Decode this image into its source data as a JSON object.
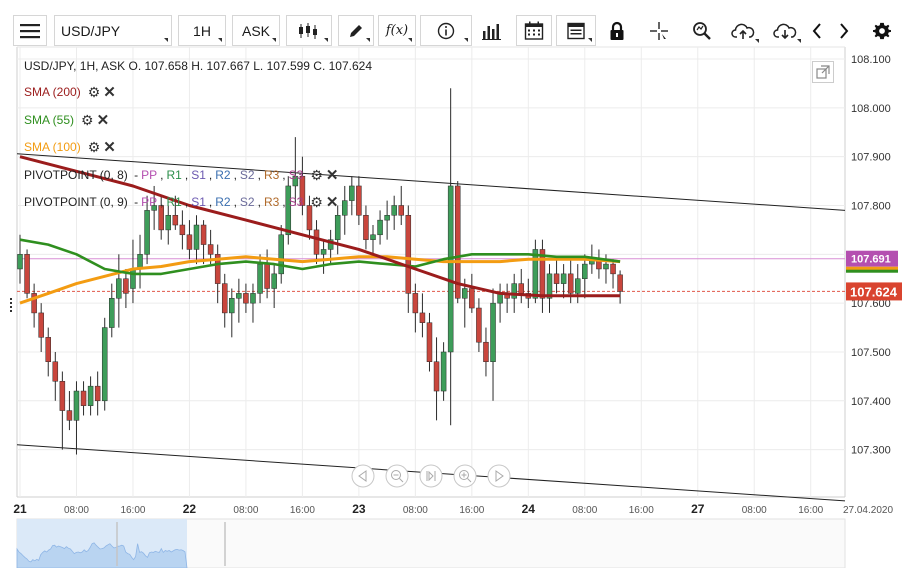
{
  "toolbar": {
    "symbol": "USD/JPY",
    "timeframe": "1H",
    "price_type": "ASK",
    "func_label": "f(x)"
  },
  "legend": {
    "ohlc": "USD/JPY, 1H, ASK    O. 107.658 H. 107.667 L. 107.599 C. 107.624",
    "sma200": "SMA (200)",
    "sma55": "SMA (55)",
    "sma100": "SMA (100)",
    "pivot1": {
      "name": "PIVOTPOINT (0, 8)",
      "labels": [
        "PP",
        "R1",
        "S1",
        "R2",
        "S2",
        "R3",
        "S3"
      ]
    },
    "pivot2": {
      "name": "PIVOTPOINT (0, 9)",
      "labels": [
        "PP",
        "R1",
        "S1",
        "R2",
        "S2",
        "R3",
        "S3"
      ]
    }
  },
  "colors": {
    "up": "#3e9d5a",
    "down": "#c9463d",
    "sma200": "#9b1c1c",
    "sma55": "#2f8f1f",
    "sma100": "#f39c12",
    "last_price_bg": "#d9442f",
    "marker_bg": "#b44fb0"
  },
  "chart_data": {
    "type": "candlestick",
    "symbol": "USD/JPY",
    "interval": "1H",
    "y_ticks": [
      108.1,
      108.0,
      107.9,
      107.8,
      107.7,
      107.6,
      107.5,
      107.4,
      107.3
    ],
    "y_tick_labels": [
      "108.100",
      "108.000",
      "107.900",
      "107.800",
      "107.700",
      "107.600",
      "107.500",
      "107.400",
      "107.300"
    ],
    "ylim": [
      107.2,
      108.12
    ],
    "x_ticks": [
      {
        "label": "21",
        "bold": true,
        "index": 0
      },
      {
        "label": "08:00",
        "bold": false,
        "index": 8
      },
      {
        "label": "16:00",
        "bold": false,
        "index": 16
      },
      {
        "label": "22",
        "bold": true,
        "index": 24
      },
      {
        "label": "08:00",
        "bold": false,
        "index": 32
      },
      {
        "label": "16:00",
        "bold": false,
        "index": 40
      },
      {
        "label": "23",
        "bold": true,
        "index": 48
      },
      {
        "label": "08:00",
        "bold": false,
        "index": 56
      },
      {
        "label": "16:00",
        "bold": false,
        "index": 64
      },
      {
        "label": "24",
        "bold": true,
        "index": 72
      },
      {
        "label": "08:00",
        "bold": false,
        "index": 80
      },
      {
        "label": "16:00",
        "bold": false,
        "index": 88
      },
      {
        "label": "27",
        "bold": true,
        "index": 96
      },
      {
        "label": "08:00",
        "bold": false,
        "index": 104
      },
      {
        "label": "16:00",
        "bold": false,
        "index": 112
      },
      {
        "label": "27.04.2020",
        "bold": false,
        "index": 120
      }
    ],
    "candles": [
      [
        107.67,
        107.74,
        107.64,
        107.7
      ],
      [
        107.7,
        107.71,
        107.61,
        107.62
      ],
      [
        107.62,
        107.64,
        107.55,
        107.58
      ],
      [
        107.58,
        107.6,
        107.5,
        107.53
      ],
      [
        107.53,
        107.55,
        107.45,
        107.48
      ],
      [
        107.48,
        107.5,
        107.4,
        107.44
      ],
      [
        107.44,
        107.46,
        107.3,
        107.38
      ],
      [
        107.38,
        107.42,
        107.34,
        107.36
      ],
      [
        107.36,
        107.44,
        107.29,
        107.42
      ],
      [
        107.42,
        107.44,
        107.37,
        107.39
      ],
      [
        107.39,
        107.45,
        107.37,
        107.43
      ],
      [
        107.43,
        107.46,
        107.37,
        107.4
      ],
      [
        107.4,
        107.57,
        107.38,
        107.55
      ],
      [
        107.55,
        107.64,
        107.53,
        107.61
      ],
      [
        107.61,
        107.7,
        107.55,
        107.65
      ],
      [
        107.65,
        107.67,
        107.59,
        107.62
      ],
      [
        107.63,
        107.73,
        107.6,
        107.67
      ],
      [
        107.67,
        107.74,
        107.63,
        107.7
      ],
      [
        107.7,
        107.82,
        107.68,
        107.79
      ],
      [
        107.79,
        107.84,
        107.75,
        107.8
      ],
      [
        107.8,
        107.82,
        107.73,
        107.75
      ],
      [
        107.75,
        107.8,
        107.72,
        107.78
      ],
      [
        107.78,
        107.82,
        107.75,
        107.76
      ],
      [
        107.76,
        107.79,
        107.71,
        107.74
      ],
      [
        107.74,
        107.77,
        107.69,
        107.71
      ],
      [
        107.71,
        107.78,
        107.68,
        107.76
      ],
      [
        107.76,
        107.77,
        107.68,
        107.72
      ],
      [
        107.72,
        107.75,
        107.68,
        107.7
      ],
      [
        107.7,
        107.72,
        107.6,
        107.64
      ],
      [
        107.64,
        107.66,
        107.55,
        107.58
      ],
      [
        107.58,
        107.63,
        107.53,
        107.61
      ],
      [
        107.61,
        107.65,
        107.56,
        107.62
      ],
      [
        107.62,
        107.64,
        107.58,
        107.6
      ],
      [
        107.6,
        107.64,
        107.56,
        107.62
      ],
      [
        107.62,
        107.7,
        107.6,
        107.68
      ],
      [
        107.68,
        107.71,
        107.61,
        107.63
      ],
      [
        107.63,
        107.68,
        107.59,
        107.66
      ],
      [
        107.66,
        107.76,
        107.64,
        107.74
      ],
      [
        107.74,
        107.86,
        107.72,
        107.84
      ],
      [
        107.84,
        107.94,
        107.8,
        107.86
      ],
      [
        107.86,
        107.9,
        107.78,
        107.8
      ],
      [
        107.8,
        107.82,
        107.73,
        107.75
      ],
      [
        107.75,
        107.77,
        107.68,
        107.7
      ],
      [
        107.7,
        107.73,
        107.66,
        107.71
      ],
      [
        107.71,
        107.75,
        107.68,
        107.73
      ],
      [
        107.73,
        107.8,
        107.7,
        107.78
      ],
      [
        107.78,
        107.84,
        107.74,
        107.81
      ],
      [
        107.81,
        107.86,
        107.78,
        107.84
      ],
      [
        107.84,
        107.86,
        107.76,
        107.78
      ],
      [
        107.78,
        107.8,
        107.71,
        107.73
      ],
      [
        107.73,
        107.76,
        107.7,
        107.74
      ],
      [
        107.74,
        107.79,
        107.72,
        107.77
      ],
      [
        107.77,
        107.81,
        107.73,
        107.78
      ],
      [
        107.78,
        107.82,
        107.75,
        107.8
      ],
      [
        107.8,
        107.84,
        107.76,
        107.78
      ],
      [
        107.78,
        107.8,
        107.58,
        107.62
      ],
      [
        107.62,
        107.64,
        107.54,
        107.58
      ],
      [
        107.58,
        107.62,
        107.53,
        107.56
      ],
      [
        107.56,
        107.58,
        107.46,
        107.48
      ],
      [
        107.48,
        107.53,
        107.36,
        107.42
      ],
      [
        107.42,
        107.52,
        107.4,
        107.5
      ],
      [
        107.5,
        108.04,
        107.35,
        107.84
      ],
      [
        107.84,
        107.85,
        107.6,
        107.61
      ],
      [
        107.61,
        107.65,
        107.55,
        107.63
      ],
      [
        107.63,
        107.66,
        107.58,
        107.59
      ],
      [
        107.59,
        107.61,
        107.5,
        107.52
      ],
      [
        107.52,
        107.55,
        107.45,
        107.48
      ],
      [
        107.48,
        107.63,
        107.4,
        107.6
      ],
      [
        107.6,
        107.64,
        107.56,
        107.62
      ],
      [
        107.62,
        107.64,
        107.58,
        107.61
      ],
      [
        107.61,
        107.66,
        107.58,
        107.64
      ],
      [
        107.64,
        107.67,
        107.6,
        107.62
      ],
      [
        107.62,
        107.65,
        107.59,
        107.61
      ],
      [
        107.61,
        107.73,
        107.6,
        107.71
      ],
      [
        107.71,
        107.73,
        107.58,
        107.61
      ],
      [
        107.61,
        107.68,
        107.58,
        107.66
      ],
      [
        107.66,
        107.69,
        107.62,
        107.64
      ],
      [
        107.64,
        107.68,
        107.61,
        107.66
      ],
      [
        107.66,
        107.69,
        107.6,
        107.62
      ],
      [
        107.62,
        107.68,
        107.6,
        107.65
      ],
      [
        107.65,
        107.7,
        107.61,
        107.68
      ],
      [
        107.68,
        107.72,
        107.66,
        107.69
      ],
      [
        107.69,
        107.71,
        107.65,
        107.67
      ],
      [
        107.67,
        107.7,
        107.64,
        107.68
      ],
      [
        107.68,
        107.69,
        107.63,
        107.66
      ],
      [
        107.658,
        107.667,
        107.599,
        107.624
      ]
    ],
    "sma200": [
      [
        0,
        107.9
      ],
      [
        8,
        107.87
      ],
      [
        16,
        107.84
      ],
      [
        24,
        107.8
      ],
      [
        32,
        107.77
      ],
      [
        40,
        107.74
      ],
      [
        48,
        107.71
      ],
      [
        56,
        107.67
      ],
      [
        62,
        107.64
      ],
      [
        68,
        107.62
      ],
      [
        74,
        107.615
      ],
      [
        85,
        107.615
      ]
    ],
    "sma55": [
      [
        0,
        107.73
      ],
      [
        4,
        107.72
      ],
      [
        8,
        107.7
      ],
      [
        12,
        107.67
      ],
      [
        16,
        107.66
      ],
      [
        20,
        107.66
      ],
      [
        24,
        107.67
      ],
      [
        28,
        107.68
      ],
      [
        32,
        107.685
      ],
      [
        36,
        107.68
      ],
      [
        40,
        107.67
      ],
      [
        44,
        107.68
      ],
      [
        48,
        107.685
      ],
      [
        52,
        107.68
      ],
      [
        56,
        107.675
      ],
      [
        60,
        107.69
      ],
      [
        64,
        107.7
      ],
      [
        68,
        107.7
      ],
      [
        72,
        107.7
      ],
      [
        76,
        107.695
      ],
      [
        80,
        107.695
      ],
      [
        85,
        107.685
      ]
    ],
    "sma100": [
      [
        0,
        107.6
      ],
      [
        4,
        107.62
      ],
      [
        8,
        107.64
      ],
      [
        12,
        107.655
      ],
      [
        16,
        107.67
      ],
      [
        20,
        107.675
      ],
      [
        24,
        107.685
      ],
      [
        28,
        107.69
      ],
      [
        32,
        107.695
      ],
      [
        36,
        107.69
      ],
      [
        40,
        107.685
      ],
      [
        44,
        107.69
      ],
      [
        48,
        107.695
      ],
      [
        52,
        107.695
      ],
      [
        56,
        107.69
      ],
      [
        60,
        107.685
      ],
      [
        64,
        107.685
      ],
      [
        68,
        107.685
      ],
      [
        72,
        107.69
      ],
      [
        76,
        107.69
      ],
      [
        80,
        107.69
      ],
      [
        85,
        107.685
      ]
    ],
    "trendline_upper": [
      [
        -2,
        107.906
      ],
      [
        122,
        107.785
      ]
    ],
    "trendline_lower": [
      [
        -2,
        107.31
      ],
      [
        122,
        107.19
      ]
    ],
    "pivot_level": 107.691,
    "pivot_label": "107.691",
    "last_price": 107.624,
    "last_price_label": "107.624"
  }
}
